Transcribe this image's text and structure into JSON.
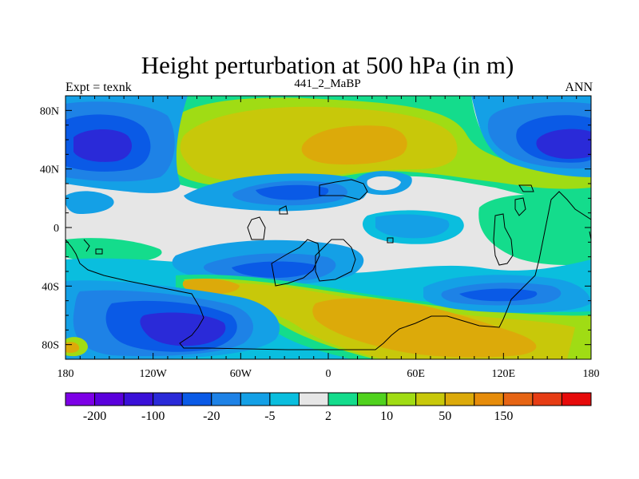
{
  "chart_data": {
    "type": "heatmap",
    "title": "Height perturbation at 500 hPa (in m)",
    "left_string": "Expt = texnk",
    "center_string": "441_2_MaBP",
    "right_string": "ANN",
    "x_ticks": [
      "180",
      "120W",
      "60W",
      "0",
      "60E",
      "120E",
      "180"
    ],
    "y_ticks": [
      "80N",
      "40N",
      "0",
      "40S",
      "80S"
    ],
    "xlim": [
      -180,
      180
    ],
    "ylim": [
      -90,
      90
    ],
    "levels": [
      "-200",
      "-100",
      "-20",
      "-5",
      "2",
      "10",
      "50",
      "150"
    ],
    "colorbar_colors": [
      "#7d00e6",
      "#5a00dc",
      "#3a10d8",
      "#2a2ad8",
      "#0a5ae6",
      "#1e82e6",
      "#14a0e6",
      "#0abede",
      "#e6e6e6",
      "#14dc8c",
      "#50d21e",
      "#a0dc14",
      "#c8c80a",
      "#dcaa0a",
      "#e68c0a",
      "#e66414",
      "#e63c14",
      "#e60a0a"
    ],
    "features": [
      {
        "label": "low",
        "lon": -150,
        "lat": 55,
        "value": -100
      },
      {
        "label": "low",
        "lon": 160,
        "lat": 55,
        "value": -100
      },
      {
        "label": "high",
        "lon": 45,
        "lat": 55,
        "value": 50
      },
      {
        "label": "low",
        "lon": -95,
        "lat": -70,
        "value": -100
      },
      {
        "label": "high",
        "lon": 80,
        "lat": -65,
        "value": 50
      },
      {
        "label": "low",
        "lon": 135,
        "lat": -47,
        "value": -20
      }
    ]
  }
}
